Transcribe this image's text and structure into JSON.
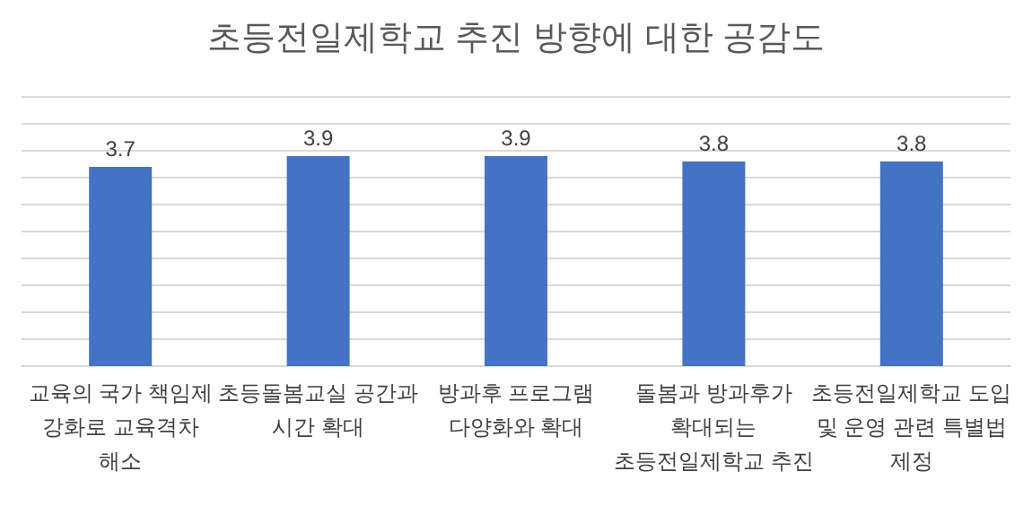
{
  "chart_data": {
    "type": "bar",
    "title": "초등전일제학교 추진 방향에 대한 공감도",
    "categories": [
      "교육의 국가 책임제\n강화로 교육격차\n해소",
      "초등돌봄교실 공간과\n시간 확대",
      "방과후 프로그램\n다양화와 확대",
      "돌봄과 방과후가\n확대되는\n초등전일제학교 추진",
      "초등전일제학교 도입\n및 운영 관련 특별법\n제정"
    ],
    "values": [
      3.7,
      3.9,
      3.9,
      3.8,
      3.8
    ],
    "color": "#4472c4",
    "data_labels": true,
    "ylim": [
      0,
      5
    ],
    "yticks": [
      {
        "value": 0,
        "label": null
      },
      {
        "value": 0.5,
        "label": null
      },
      {
        "value": 1,
        "label": null
      },
      {
        "value": 1.5,
        "label": null
      },
      {
        "value": 2,
        "label": null
      },
      {
        "value": 2.5,
        "label": null
      },
      {
        "value": 3,
        "label": null
      },
      {
        "value": 3.5,
        "label": null
      },
      {
        "value": 4,
        "label": null
      },
      {
        "value": 4.5,
        "label": null
      },
      {
        "value": 5,
        "label": null
      }
    ],
    "tick_labels": "x",
    "grid": "y"
  }
}
